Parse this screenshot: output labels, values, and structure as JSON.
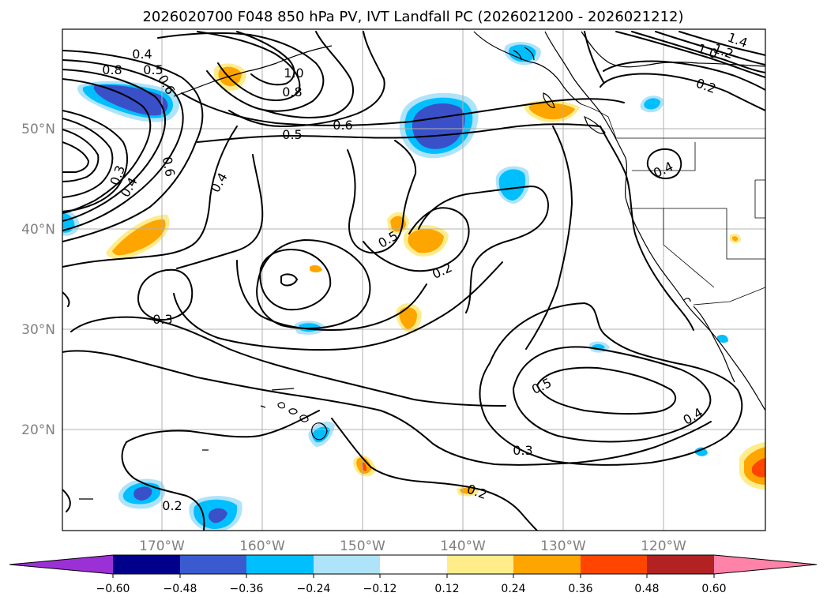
{
  "figure": {
    "title": "2026020700 F048 850 hPa PV, IVT Landfall PC (2026021200 - 2026021212)"
  },
  "axes": {
    "lat_labels": [
      "50°N",
      "40°N",
      "30°N",
      "20°N"
    ],
    "lon_labels": [
      "170°W",
      "160°W",
      "150°W",
      "140°W",
      "130°W",
      "120°W"
    ]
  },
  "contour_labels": [
    "0.4",
    "0.5",
    "0.8",
    "0.6",
    "0.6",
    "0.4",
    "0.3",
    "0.4",
    "0.3",
    "1.0",
    "0.8",
    "0.5",
    "0.6",
    "0.5",
    "0.2",
    "0.4",
    "0.2",
    "0.5",
    "0.4",
    "0.3",
    "0.2",
    "0.2",
    "1.4",
    "1.2",
    "1.0"
  ],
  "colorbar": {
    "ticks": [
      "−0.60",
      "−0.48",
      "−0.36",
      "−0.24",
      "−0.12",
      "0.12",
      "0.24",
      "0.36",
      "0.48",
      "0.60"
    ],
    "colors": [
      "#9b30d6",
      "#00008b",
      "#3a5bd0",
      "#00bfff",
      "#aee3fa",
      "#ffffff",
      "#ffec8b",
      "#ffa500",
      "#ff4500",
      "#b22222",
      "#ff82a8"
    ]
  },
  "colors": {
    "neg_deep": "#3a50c8",
    "neg_mid": "#00bfff",
    "neg_light": "#aee3fa",
    "pos_light": "#ffec8b",
    "pos_mid": "#ffa500",
    "pos_strong": "#ff4500"
  }
}
